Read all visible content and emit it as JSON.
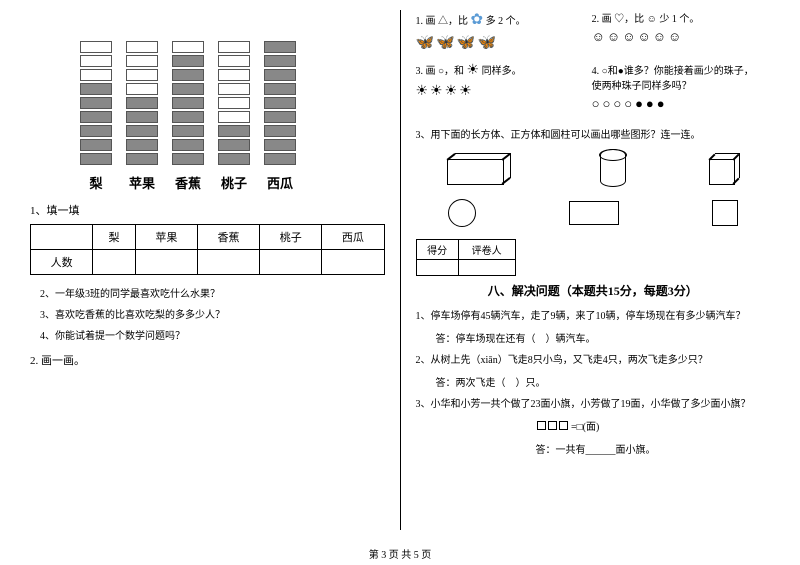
{
  "left": {
    "chart": {
      "categories": [
        "梨",
        "苹果",
        "香蕉",
        "桃子",
        "西瓜"
      ],
      "total_cells": 9,
      "filled": [
        6,
        5,
        8,
        3,
        9
      ],
      "cell_empty_color": "#ffffff",
      "cell_filled_color": "#888888",
      "cell_border": "#555555"
    },
    "fill_title": "1、填一填",
    "table": {
      "headers": [
        "",
        "梨",
        "苹果",
        "香蕉",
        "桃子",
        "西瓜"
      ],
      "row_label": "人数"
    },
    "q2": "2、一年级3班的同学最喜欢吃什么水果？",
    "q3": "3、喜欢吃香蕉的比喜欢吃梨的多多少人？",
    "q4": "4、你能试着提一个数学问题吗？",
    "draw_title": "2. 画一画。"
  },
  "right": {
    "box1": {
      "text": "1. 画 △，比",
      "tail": "多 2 个。",
      "icons": "🦋🦋🦋🦋"
    },
    "box2": {
      "text": "2. 画 ♡，比 ☺ 少 1 个。",
      "icons": "☺☺☺☺☺☺"
    },
    "box3": {
      "text": "3. 画 ○，和",
      "tail": "同样多。",
      "icons": "☀☀☀☀"
    },
    "box4": {
      "text": "4. ○和●谁多？你能接着画少的珠子，使两种珠子同样多吗？",
      "icons": "○○○○●●●"
    },
    "shapes_q": "3、用下面的长方体、正方体和圆柱可以画出哪些图形？连一连。",
    "score_headers": [
      "得分",
      "评卷人"
    ],
    "section8_title": "八、解决问题（本题共15分，每题3分）",
    "p1": "1、停车场停有45辆汽车，走了9辆，来了10辆，停车场现在有多少辆汽车？",
    "p1_ans": "答：停车场现在还有（　）辆汽车。",
    "p2": "2、从树上先（xiān）飞走8只小鸟，又飞走4只，两次飞走多少只？",
    "p2_ans": "答：两次飞走（　）只。",
    "p3": "3、小华和小芳一共个做了23面小旗，小芳做了19面，小华做了多少面小旗？",
    "p3_eq": "=□(面)",
    "p3_ans": "答：一共有______面小旗。"
  },
  "footer": "第 3 页  共 5 页"
}
